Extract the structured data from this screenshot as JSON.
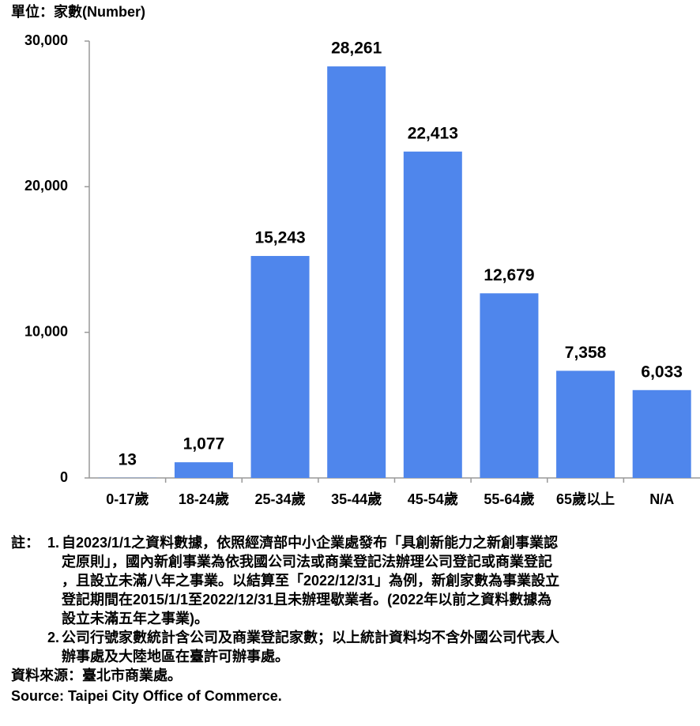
{
  "chart_data": {
    "type": "bar",
    "unit_label": "單位：家數(Number)",
    "categories": [
      "0-17歲",
      "18-24歲",
      "25-34歲",
      "35-44歲",
      "45-54歲",
      "55-64歲",
      "65歲以上",
      "N/A"
    ],
    "values": [
      13,
      1077,
      15243,
      28261,
      22413,
      12679,
      7358,
      6033
    ],
    "value_labels": [
      "13",
      "1,077",
      "15,243",
      "28,261",
      "22,413",
      "12,679",
      "7,358",
      "6,033"
    ],
    "color": "#4f86ec",
    "label_color": "#5b8fe6",
    "ylim": [
      0,
      30000
    ],
    "yticks": [
      0,
      {
        "value": 10000,
        "label": "10,000"
      },
      {
        "value": 20000,
        "label": "20,000"
      },
      {
        "value": 30000,
        "label": "30,000"
      }
    ],
    "grid": false
  },
  "notes": {
    "label": "註：",
    "items": [
      {
        "number": "1.",
        "lines": [
          "自2023/1/1之資料數據，依照經濟部中小企業處發布「具創新能力之新創事業認",
          "定原則」，國內新創事業為依我國公司法或商業登記法辦理公司登記或商業登記",
          "，且設立未滿八年之事業。以結算至「2022/12/31」為例，新創家數為事業設立",
          "登記期間在2015/1/1至2022/12/31且未辦理歇業者。(2022年以前之資料數據為",
          "設立未滿五年之事業)。"
        ]
      },
      {
        "number": "2.",
        "lines": [
          "公司行號家數統計含公司及商業登記家數；以上統計資料均不含外國公司代表人",
          "辦事處及大陸地區在臺許可辦事處。"
        ]
      }
    ]
  },
  "source": [
    "資料來源：臺北市商業處。",
    "Source: Taipei City Office of Commerce."
  ]
}
